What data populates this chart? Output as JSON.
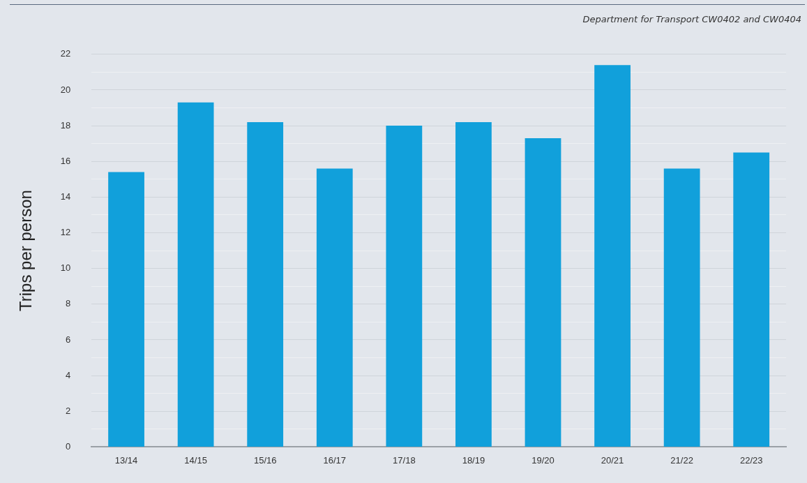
{
  "chart_data": {
    "type": "bar",
    "ylabel": "Trips per person",
    "annotations": [
      "Department for Transport CW0402 and CW0404"
    ],
    "categories": [
      "13/14",
      "14/15",
      "15/16",
      "16/17",
      "17/18",
      "18/19",
      "19/20",
      "20/21",
      "21/22",
      "22/23"
    ],
    "values": [
      15.4,
      19.3,
      18.2,
      15.6,
      18.0,
      18.2,
      17.3,
      21.4,
      15.6,
      16.5
    ],
    "color": "#11a0db",
    "ylim": [
      0,
      22
    ],
    "yticks": [
      0,
      {
        "value": 1,
        "label": null
      },
      2,
      {
        "value": 3,
        "label": null
      },
      4,
      {
        "value": 5,
        "label": null
      },
      6,
      {
        "value": 7,
        "label": null
      },
      8,
      {
        "value": 9,
        "label": null
      },
      10,
      {
        "value": 11,
        "label": null
      },
      12,
      {
        "value": 13,
        "label": null
      },
      14,
      {
        "value": 15,
        "label": null
      },
      16,
      {
        "value": 17,
        "label": null
      },
      18,
      {
        "value": 19,
        "label": null
      },
      20,
      {
        "value": 21,
        "label": null
      },
      22
    ],
    "grid": "y",
    "legend": false
  }
}
